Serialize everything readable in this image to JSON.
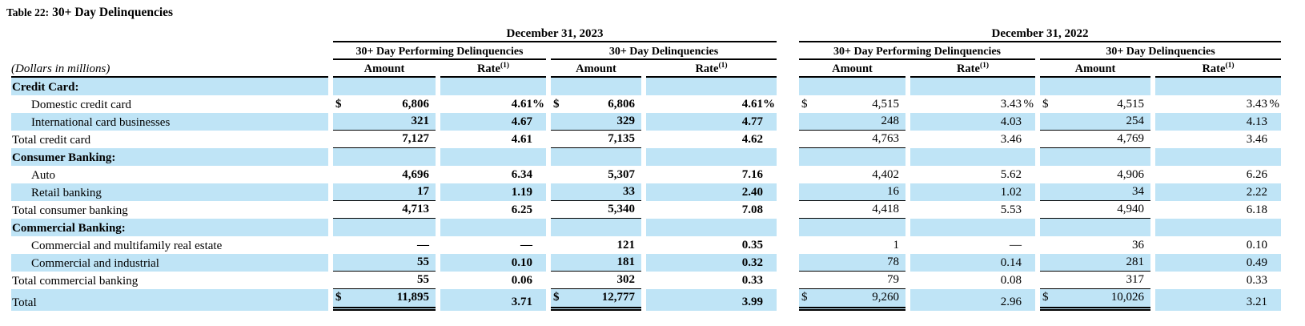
{
  "title": {
    "prefix": "Table 22:",
    "text": "30+ Day Delinquencies"
  },
  "table": {
    "row_label_header": "(Dollars in millions)",
    "periods": [
      {
        "label": "December 31, 2023"
      },
      {
        "label": "December 31, 2022"
      }
    ],
    "subgroups": [
      "30+ Day Performing Delinquencies",
      "30+ Day Delinquencies"
    ],
    "amount_header": "Amount",
    "rate_header": "Rate",
    "rate_footnote_marker": "(1)",
    "currency_symbol": "$",
    "percent_symbol": "%",
    "colors": {
      "row_highlight": "#bfe4f6"
    },
    "rows": [
      {
        "label": "Credit Card:",
        "style": "section",
        "shaded": true,
        "show_currency": false,
        "show_percent": false,
        "underline": null,
        "values": null
      },
      {
        "label": "Domestic credit card",
        "style": "item",
        "shaded": false,
        "show_currency": true,
        "show_percent": true,
        "underline": null,
        "values": [
          "6,806",
          "4.61",
          "6,806",
          "4.61",
          "4,515",
          "3.43",
          "4,515",
          "3.43"
        ]
      },
      {
        "label": "International card businesses",
        "style": "item",
        "shaded": true,
        "show_currency": false,
        "show_percent": false,
        "underline": "single",
        "values": [
          "321",
          "4.67",
          "329",
          "4.77",
          "248",
          "4.03",
          "254",
          "4.13"
        ]
      },
      {
        "label": "Total credit card",
        "style": "total",
        "shaded": false,
        "show_currency": false,
        "show_percent": false,
        "underline": "single",
        "values": [
          "7,127",
          "4.61",
          "7,135",
          "4.62",
          "4,763",
          "3.46",
          "4,769",
          "3.46"
        ]
      },
      {
        "label": "Consumer Banking:",
        "style": "section",
        "shaded": true,
        "show_currency": false,
        "show_percent": false,
        "underline": null,
        "values": null
      },
      {
        "label": "Auto",
        "style": "item",
        "shaded": false,
        "show_currency": false,
        "show_percent": false,
        "underline": null,
        "values": [
          "4,696",
          "6.34",
          "5,307",
          "7.16",
          "4,402",
          "5.62",
          "4,906",
          "6.26"
        ]
      },
      {
        "label": "Retail banking",
        "style": "item",
        "shaded": true,
        "show_currency": false,
        "show_percent": false,
        "underline": "single",
        "values": [
          "17",
          "1.19",
          "33",
          "2.40",
          "16",
          "1.02",
          "34",
          "2.22"
        ]
      },
      {
        "label": "Total consumer banking",
        "style": "total",
        "shaded": false,
        "show_currency": false,
        "show_percent": false,
        "underline": "single",
        "values": [
          "4,713",
          "6.25",
          "5,340",
          "7.08",
          "4,418",
          "5.53",
          "4,940",
          "6.18"
        ]
      },
      {
        "label": "Commercial Banking:",
        "style": "section",
        "shaded": true,
        "show_currency": false,
        "show_percent": false,
        "underline": null,
        "values": null
      },
      {
        "label": "Commercial and multifamily real estate",
        "style": "item",
        "shaded": false,
        "show_currency": false,
        "show_percent": false,
        "underline": null,
        "values": [
          "—",
          "—",
          "121",
          "0.35",
          "1",
          "—",
          "36",
          "0.10"
        ]
      },
      {
        "label": "Commercial and industrial",
        "style": "item",
        "shaded": true,
        "show_currency": false,
        "show_percent": false,
        "underline": "single",
        "values": [
          "55",
          "0.10",
          "181",
          "0.32",
          "78",
          "0.14",
          "281",
          "0.49"
        ]
      },
      {
        "label": "Total commercial banking",
        "style": "total",
        "shaded": false,
        "show_currency": false,
        "show_percent": false,
        "underline": "single",
        "values": [
          "55",
          "0.06",
          "302",
          "0.33",
          "79",
          "0.08",
          "317",
          "0.33"
        ]
      },
      {
        "label": "Total",
        "style": "grand",
        "shaded": true,
        "show_currency": true,
        "show_percent": false,
        "underline": "double",
        "values": [
          "11,895",
          "3.71",
          "12,777",
          "3.99",
          "9,260",
          "2.96",
          "10,026",
          "3.21"
        ]
      }
    ]
  }
}
